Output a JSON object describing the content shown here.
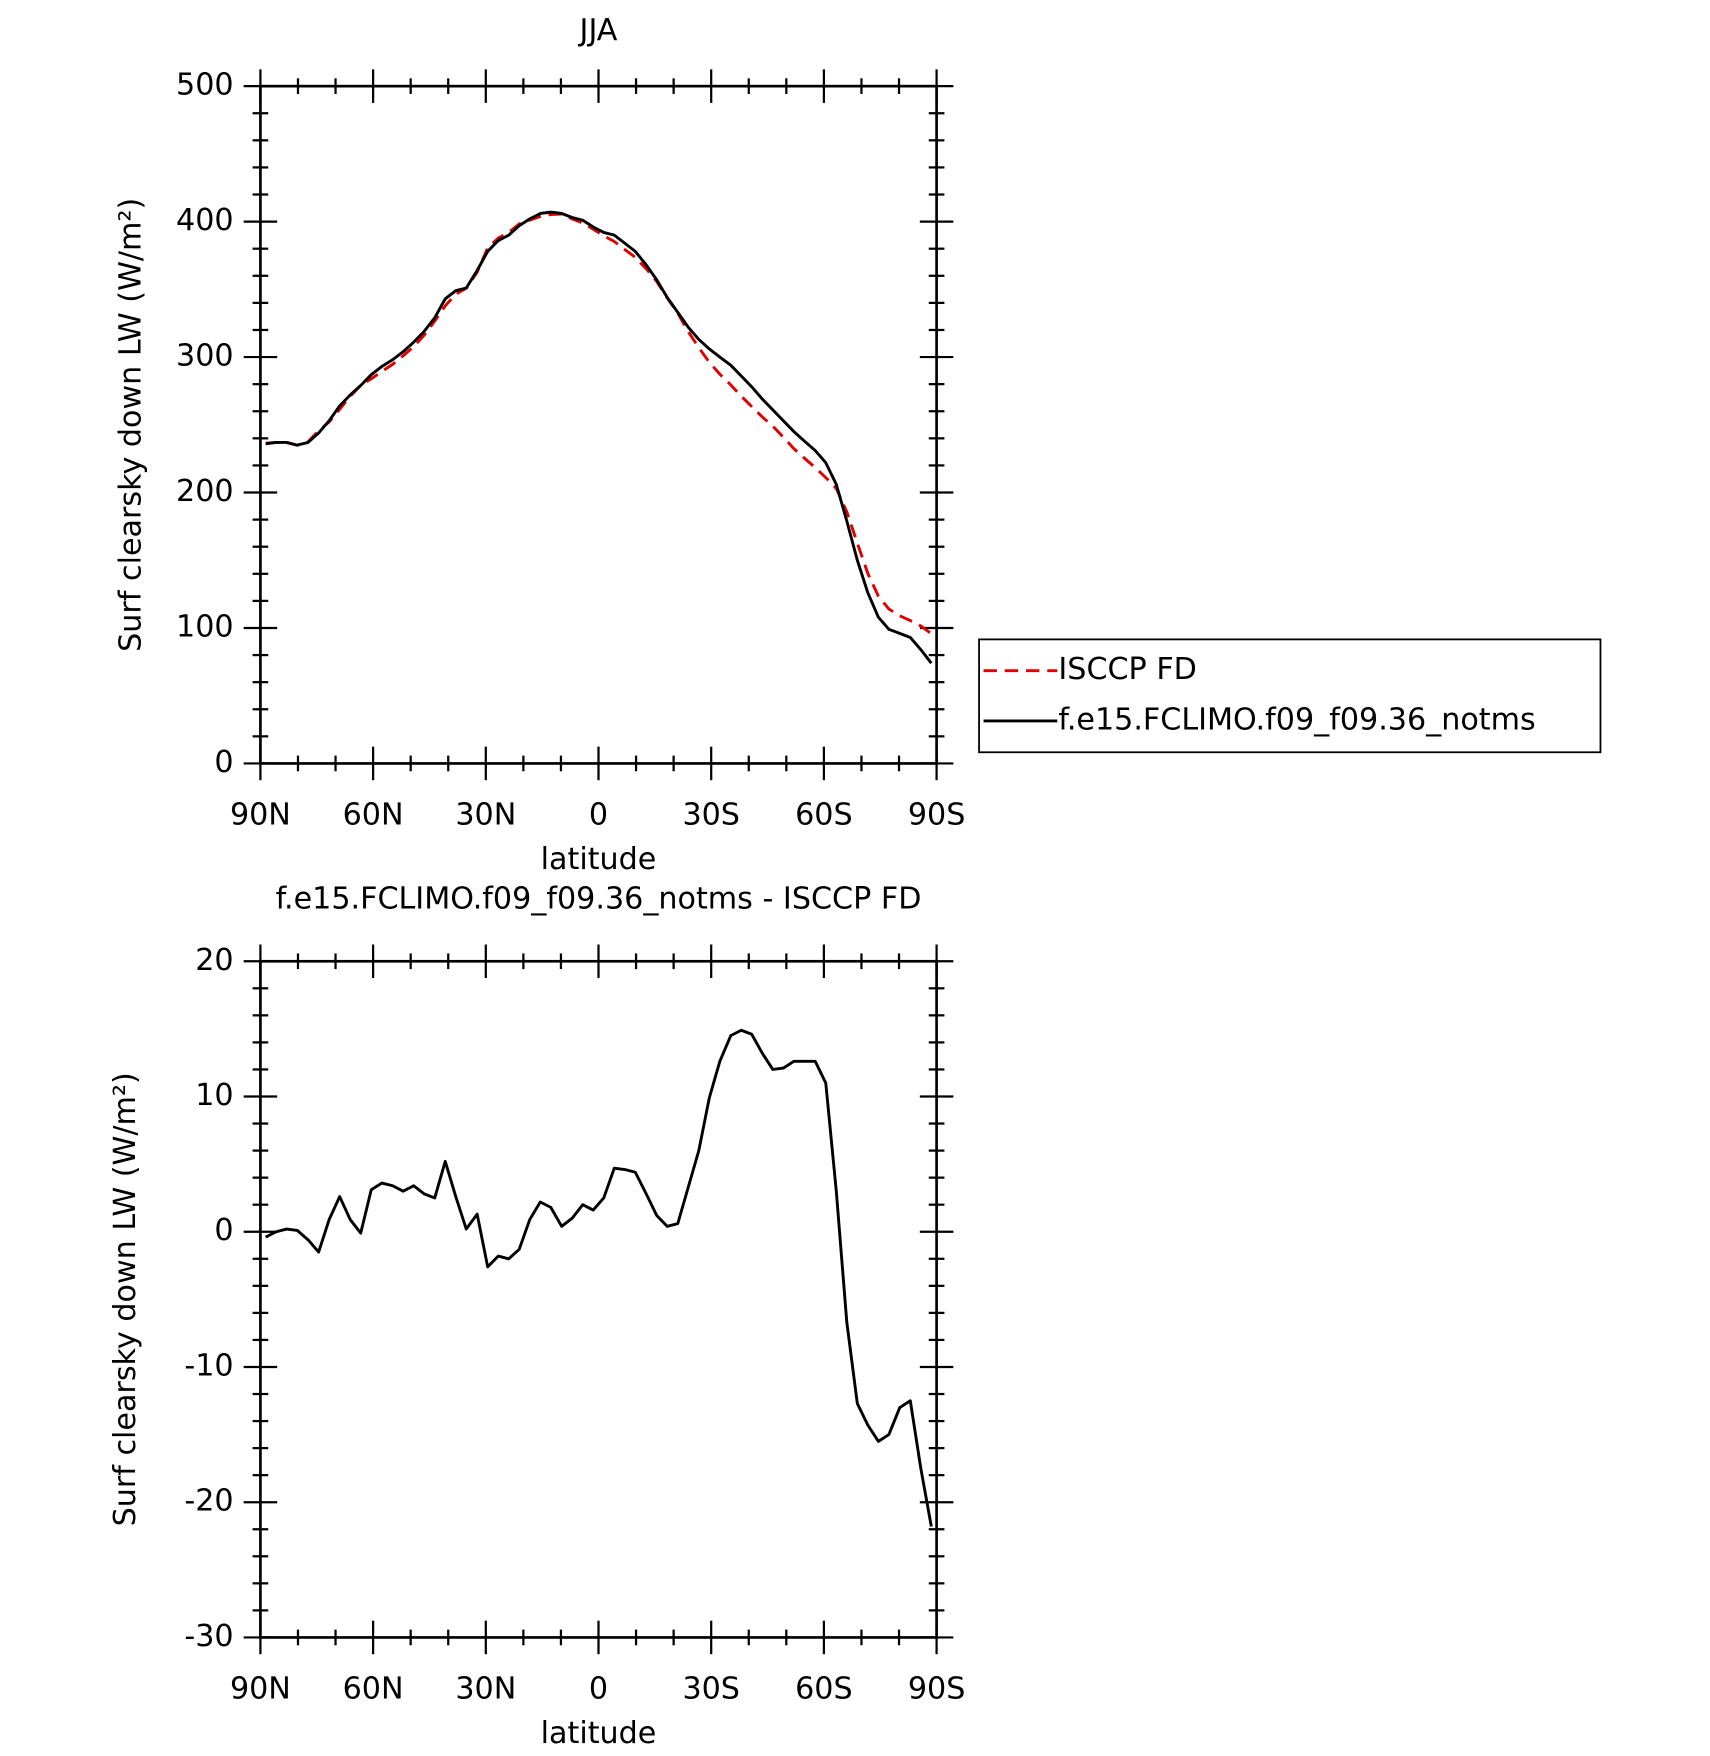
{
  "chart_data": [
    {
      "type": "line",
      "title": "JJA",
      "xlabel": "latitude",
      "ylabel": "Surf clearsky down LW (W/m²)",
      "x": [
        88.6,
        85.8,
        83.0,
        80.2,
        77.3,
        74.5,
        71.7,
        68.9,
        66.1,
        63.3,
        60.5,
        57.7,
        54.8,
        52.0,
        49.2,
        46.4,
        43.6,
        40.8,
        38.0,
        35.2,
        32.3,
        29.5,
        26.7,
        23.9,
        21.1,
        18.3,
        15.5,
        12.7,
        9.8,
        7.0,
        4.2,
        1.4,
        -1.4,
        -4.2,
        -7.0,
        -9.8,
        -12.7,
        -15.5,
        -18.3,
        -21.1,
        -23.9,
        -26.7,
        -29.5,
        -32.3,
        -35.2,
        -38.0,
        -40.8,
        -43.6,
        -46.4,
        -49.2,
        -52.0,
        -54.8,
        -57.7,
        -60.5,
        -63.3,
        -66.1,
        -68.9,
        -71.7,
        -74.5,
        -77.3,
        -80.2,
        -83.0,
        -85.8,
        -88.6
      ],
      "series": [
        {
          "name": "ISCCP FD",
          "color": "#e00000",
          "linestyle": "dashed",
          "values": [
            236.4,
            237,
            236.8,
            234.9,
            237.6,
            245.5,
            252.1,
            261.4,
            271.1,
            279.1,
            283.9,
            289.4,
            294.6,
            301,
            307.6,
            316.2,
            326.5,
            337.8,
            346.4,
            350.8,
            362.7,
            380.6,
            387.8,
            392,
            398.3,
            401.1,
            403.8,
            405.2,
            405.6,
            402,
            399,
            394.4,
            389.5,
            385.3,
            379.4,
            373.6,
            365.2,
            355.8,
            343.6,
            332.4,
            318.7,
            307,
            296.1,
            287.4,
            279.5,
            271.1,
            263.4,
            255.8,
            249,
            240.9,
            232.4,
            225.4,
            218.4,
            211,
            203,
            185.7,
            162.7,
            140.3,
            123.5,
            114,
            109,
            105.5,
            101.5,
            95.8
          ]
        },
        {
          "name": "f.e15.FCLIMO.f09_f09.36_notms",
          "color": "#000000",
          "linestyle": "solid",
          "values": [
            236,
            237,
            237,
            235,
            237,
            244,
            253,
            264,
            272,
            279,
            287,
            293,
            298,
            304,
            311,
            319,
            329,
            343,
            349,
            351,
            364,
            378,
            386,
            390,
            397,
            402,
            406,
            407,
            406,
            403,
            401,
            396,
            392,
            390,
            384,
            378,
            368,
            357,
            344,
            333,
            322,
            313,
            306,
            300,
            294,
            286,
            278,
            269,
            261,
            253,
            245,
            238,
            231,
            222,
            206,
            179,
            150,
            126,
            108,
            99,
            96,
            93,
            84,
            74
          ]
        }
      ],
      "xlim": [
        90,
        -90
      ],
      "xticks": [
        {
          "value": 90,
          "label": "90N"
        },
        {
          "value": 60,
          "label": "60N"
        },
        {
          "value": 30,
          "label": "30N"
        },
        0,
        {
          "value": -30,
          "label": "30S"
        },
        {
          "value": -60,
          "label": "60S"
        },
        {
          "value": -90,
          "label": "90S"
        }
      ],
      "ylim": [
        0,
        500
      ],
      "yticks": [
        0,
        100,
        200,
        300,
        400,
        500
      ],
      "grid": false,
      "legend": "right"
    },
    {
      "type": "line",
      "title": "f.e15.FCLIMO.f09_f09.36_notms - ISCCP FD",
      "xlabel": "latitude",
      "ylabel": "Surf clearsky down LW (W/m²)",
      "x": [
        88.6,
        85.8,
        83.0,
        80.2,
        77.3,
        74.5,
        71.7,
        68.9,
        66.1,
        63.3,
        60.5,
        57.7,
        54.8,
        52.0,
        49.2,
        46.4,
        43.6,
        40.8,
        38.0,
        35.2,
        32.3,
        29.5,
        26.7,
        23.9,
        21.1,
        18.3,
        15.5,
        12.7,
        9.8,
        7.0,
        4.2,
        1.4,
        -1.4,
        -4.2,
        -7.0,
        -9.8,
        -12.7,
        -15.5,
        -18.3,
        -21.1,
        -23.9,
        -26.7,
        -29.5,
        -32.3,
        -35.2,
        -38.0,
        -40.8,
        -43.6,
        -46.4,
        -49.2,
        -52.0,
        -54.8,
        -57.7,
        -60.5,
        -63.3,
        -66.1,
        -68.9,
        -71.7,
        -74.5,
        -77.3,
        -80.2,
        -83.0,
        -85.8,
        -88.6
      ],
      "values": [
        -0.4,
        0,
        0.2,
        0.1,
        -0.6,
        -1.5,
        0.9,
        2.6,
        0.9,
        -0.1,
        3.1,
        3.6,
        3.4,
        3.0,
        3.4,
        2.8,
        2.5,
        5.2,
        2.6,
        0.2,
        1.3,
        -2.6,
        -1.8,
        -2.0,
        -1.3,
        0.9,
        2.2,
        1.8,
        0.4,
        1.0,
        2.0,
        1.6,
        2.5,
        4.7,
        4.6,
        4.4,
        2.8,
        1.2,
        0.4,
        0.6,
        3.3,
        6.0,
        9.9,
        12.6,
        14.5,
        14.9,
        14.6,
        13.2,
        12.0,
        12.1,
        12.6,
        12.6,
        12.6,
        11.0,
        3.0,
        -6.7,
        -12.7,
        -14.3,
        -15.5,
        -15.0,
        -13.0,
        -12.5,
        -17.5,
        -21.8
      ],
      "color": "#000000",
      "xlim": [
        90,
        -90
      ],
      "xticks": [
        {
          "value": 90,
          "label": "90N"
        },
        {
          "value": 60,
          "label": "60N"
        },
        {
          "value": 30,
          "label": "30N"
        },
        0,
        {
          "value": -30,
          "label": "30S"
        },
        {
          "value": -60,
          "label": "60S"
        },
        {
          "value": -90,
          "label": "90S"
        }
      ],
      "ylim": [
        -30,
        20
      ],
      "yticks": [
        -30,
        -20,
        -10,
        0,
        10,
        20
      ],
      "grid": false
    }
  ]
}
